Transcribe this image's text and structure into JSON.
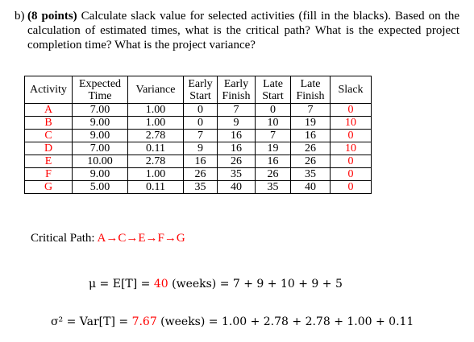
{
  "question": {
    "label": "b)",
    "points": "(8 points)",
    "text": " Calculate slack value for selected activities (fill in the blacks). Based on the calculation of estimated times, what is the critical path? What is the expected project completion time? What is the project variance?"
  },
  "table": {
    "headers": {
      "activity": "Activity",
      "expected": "Expected Time",
      "variance": "Variance",
      "early_start": "Early Start",
      "early_finish": "Early Finish",
      "late_start": "Late Start",
      "late_finish": "Late Finish",
      "slack": "Slack"
    },
    "rows": [
      {
        "activity": "A",
        "expected": "7.00",
        "variance": "1.00",
        "es": "0",
        "ef": "7",
        "ls": "0",
        "lf": "7",
        "slack": "0"
      },
      {
        "activity": "B",
        "expected": "9.00",
        "variance": "1.00",
        "es": "0",
        "ef": "9",
        "ls": "10",
        "lf": "19",
        "slack": "10"
      },
      {
        "activity": "C",
        "expected": "9.00",
        "variance": "2.78",
        "es": "7",
        "ef": "16",
        "ls": "7",
        "lf": "16",
        "slack": "0"
      },
      {
        "activity": "D",
        "expected": "7.00",
        "variance": "0.11",
        "es": "9",
        "ef": "16",
        "ls": "19",
        "lf": "26",
        "slack": "10"
      },
      {
        "activity": "E",
        "expected": "10.00",
        "variance": "2.78",
        "es": "16",
        "ef": "26",
        "ls": "16",
        "lf": "26",
        "slack": "0"
      },
      {
        "activity": "F",
        "expected": "9.00",
        "variance": "1.00",
        "es": "26",
        "ef": "35",
        "ls": "26",
        "lf": "35",
        "slack": "0"
      },
      {
        "activity": "G",
        "expected": "5.00",
        "variance": "0.11",
        "es": "35",
        "ef": "40",
        "ls": "35",
        "lf": "40",
        "slack": "0"
      }
    ],
    "highlight_color": "#ff0000"
  },
  "critical_path": {
    "label": "Critical Path: ",
    "path": "A→C→E→F→G"
  },
  "mu_line": {
    "lhs": "μ = E[T] = ",
    "value": "40",
    "rhs": " (weeks) = 7 + 9 + 10 + 9 + 5"
  },
  "variance_line": {
    "lhs": "σ² = Var[T] = ",
    "value": "7.67",
    "rhs": " (weeks) = 1.00 + 2.78 + 2.78 + 1.00 + 0.11"
  }
}
